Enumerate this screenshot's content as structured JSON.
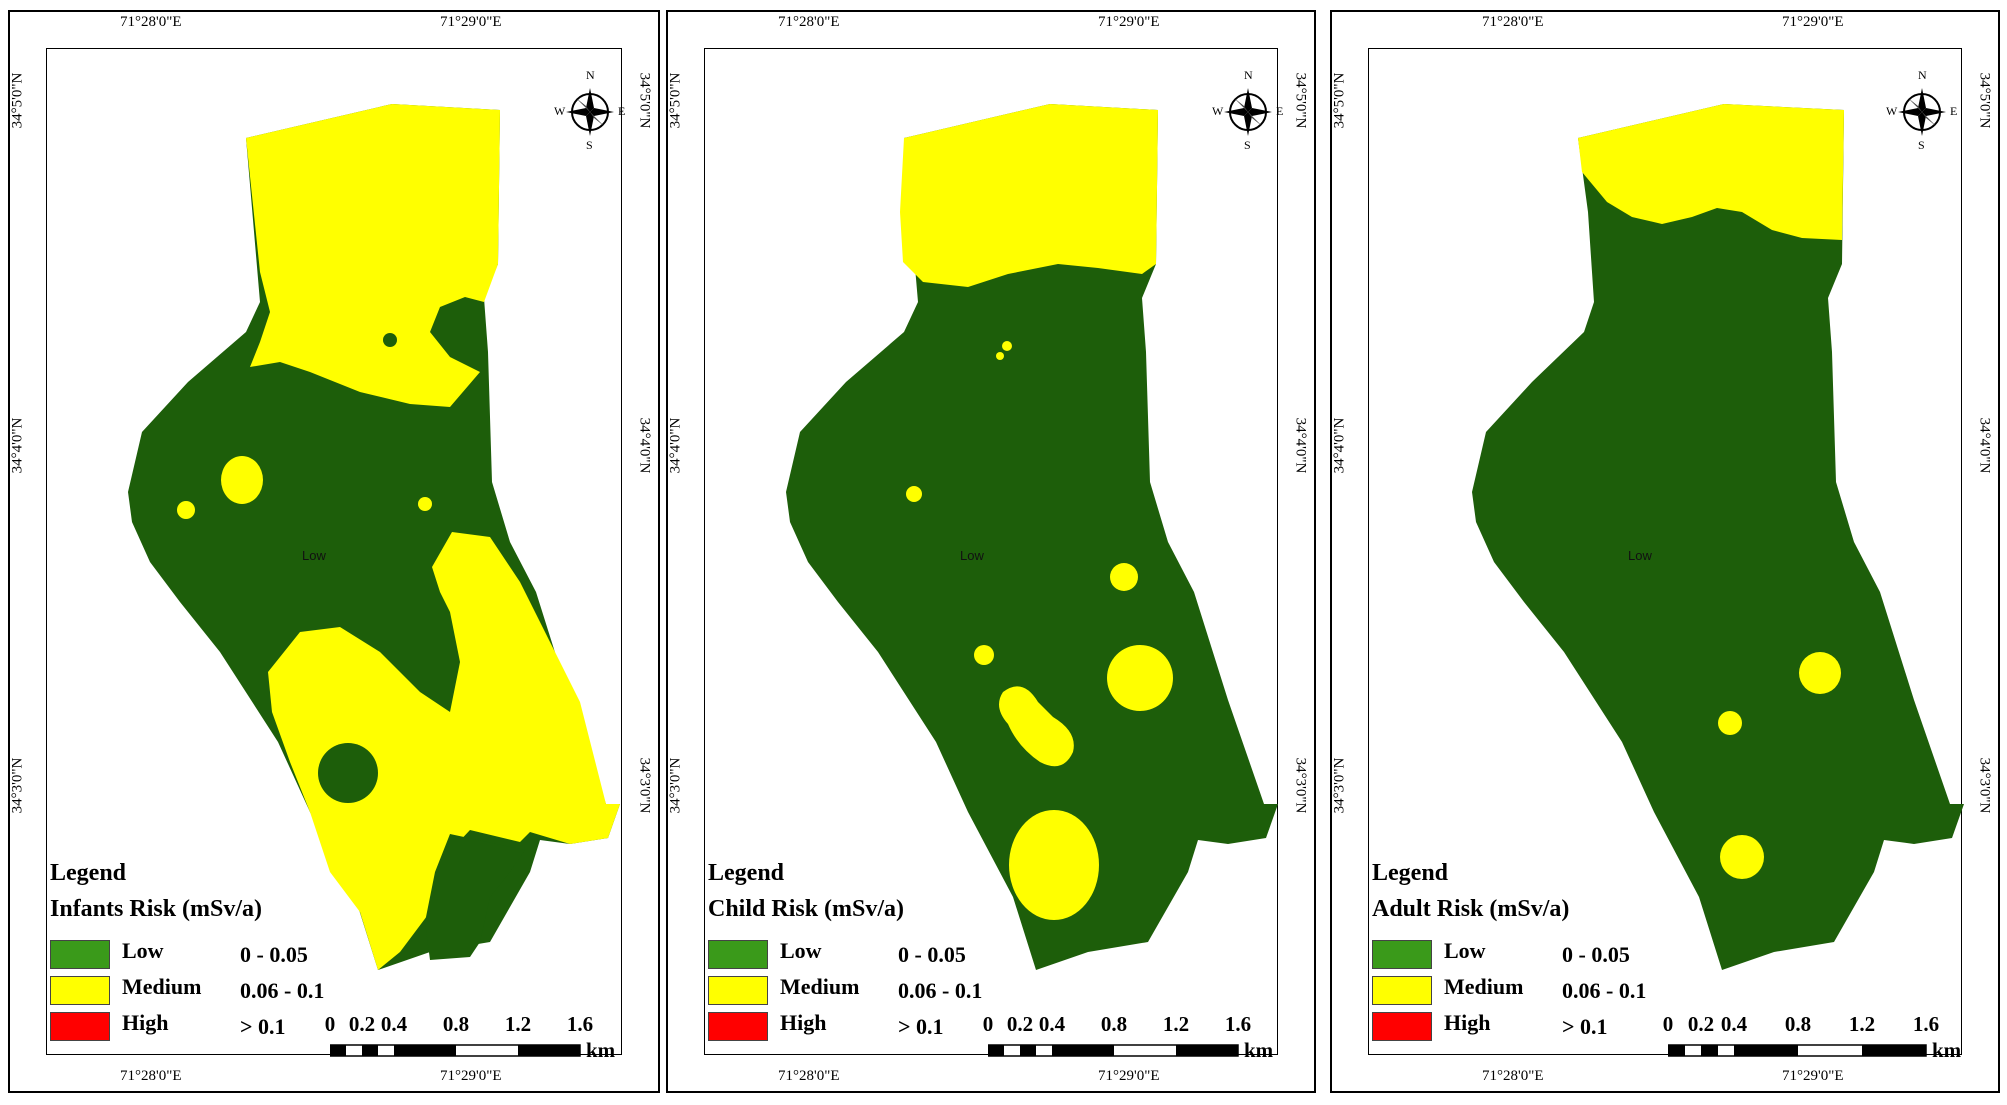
{
  "panels": [
    {
      "legend_title": "Legend",
      "legend_subtitle": "Infants Risk (mSv/a)",
      "map_label": "Low",
      "map_variant": "infants"
    },
    {
      "legend_title": "Legend",
      "legend_subtitle": "Child Risk (mSv/a)",
      "map_label": "Low",
      "map_variant": "child"
    },
    {
      "legend_title": "Legend",
      "legend_subtitle": "Adult Risk (mSv/a)",
      "map_label": "Low",
      "map_variant": "adult"
    }
  ],
  "legend_classes": [
    {
      "label": "Low",
      "range": "0 - 0.05",
      "color": "#3a9a1a"
    },
    {
      "label": "Medium",
      "range": "0.06 - 0.1",
      "color": "#ffff00"
    },
    {
      "label": "High",
      "range": "> 0.1",
      "color": "#ff0000"
    }
  ],
  "map_colors": {
    "low_fill": "#1d5e0a",
    "medium_fill": "#ffff00"
  },
  "coordinates": {
    "top_left": "71°28'0\"E",
    "top_right": "71°29'0\"E",
    "lat_top": "34°5'0\"N",
    "lat_mid": "34°4'0\"N",
    "lat_bottom": "34°3'0\"N"
  },
  "scale_bar": {
    "ticks": [
      "0",
      "0.2",
      "0.4",
      "0.8",
      "1.2",
      "1.6"
    ],
    "unit": "km"
  },
  "north_arrow": {
    "n": "N",
    "s": "S",
    "e": "E",
    "w": "W",
    "icon": "compass-rose-icon"
  }
}
